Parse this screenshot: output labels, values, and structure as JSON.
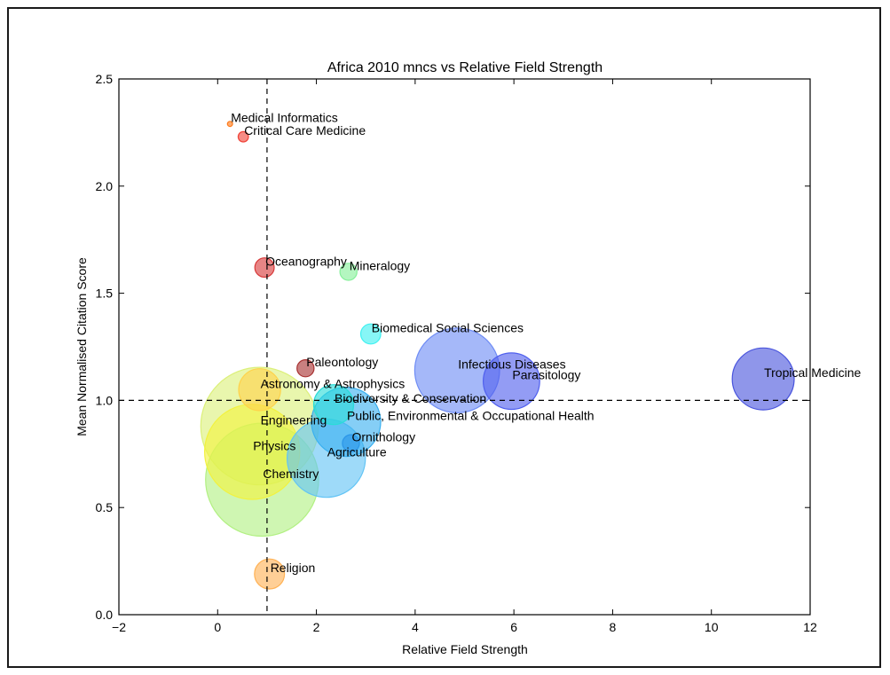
{
  "chart_data": {
    "type": "scatter",
    "variant": "bubble",
    "title": "Africa 2010 mncs vs Relative Field Strength",
    "xlabel": "Relative Field Strength",
    "ylabel": "Mean Normalised Citation Score",
    "xlim": [
      -2,
      12
    ],
    "ylim": [
      0,
      2.5
    ],
    "xticks": [
      -2,
      0,
      2,
      4,
      6,
      8,
      10,
      12
    ],
    "yticks": [
      0.0,
      0.5,
      1.0,
      1.5,
      2.0,
      2.5
    ],
    "xtick_labels": [
      "−2",
      "0",
      "2",
      "4",
      "6",
      "8",
      "10",
      "12"
    ],
    "ytick_labels": [
      "0.0",
      "0.5",
      "1.0",
      "1.5",
      "2.0",
      "2.5"
    ],
    "reference_lines": {
      "x": 1.0,
      "y": 1.0,
      "style": "dashed"
    },
    "grid": false,
    "points": [
      {
        "label": "Medical Informatics",
        "x": 0.25,
        "y": 2.29,
        "size": 0.05,
        "color": "#ff7a1a"
      },
      {
        "label": "Critical Care Medicine",
        "x": 0.52,
        "y": 2.23,
        "size": 0.2,
        "color": "#f0453a"
      },
      {
        "label": "Oceanography",
        "x": 0.95,
        "y": 1.62,
        "size": 0.7,
        "color": "#d83a3a"
      },
      {
        "label": "Mineralogy",
        "x": 2.65,
        "y": 1.6,
        "size": 0.55,
        "color": "#86f09a"
      },
      {
        "label": "Biomedical Social Sciences",
        "x": 3.1,
        "y": 1.31,
        "size": 0.75,
        "color": "#3ef0f0"
      },
      {
        "label": "Paleontology",
        "x": 1.78,
        "y": 1.15,
        "size": 0.55,
        "color": "#a83232"
      },
      {
        "label": "Infectious Diseases",
        "x": 4.85,
        "y": 1.14,
        "size": 13.5,
        "color": "#6e8cf5"
      },
      {
        "label": "Parasitology",
        "x": 5.95,
        "y": 1.09,
        "size": 6.0,
        "color": "#5060ee"
      },
      {
        "label": "Tropical Medicine",
        "x": 11.05,
        "y": 1.1,
        "size": 7.2,
        "color": "#4a55dd"
      },
      {
        "label": "Astronomy & Astrophysics",
        "x": 0.85,
        "y": 1.05,
        "size": 3.3,
        "color": "#ffd24a"
      },
      {
        "label": "Biodiversity & Conservation",
        "x": 2.35,
        "y": 0.98,
        "size": 3.0,
        "color": "#2adcd8"
      },
      {
        "label": "Public, Environmental & Occupational Health",
        "x": 2.6,
        "y": 0.9,
        "size": 9.0,
        "color": "#3ab0f0"
      },
      {
        "label": "Engineering",
        "x": 0.85,
        "y": 0.88,
        "size": 26.0,
        "color": "#dcf07a"
      },
      {
        "label": "Ornithology",
        "x": 2.7,
        "y": 0.8,
        "size": 0.55,
        "color": "#2b96e8"
      },
      {
        "label": "Agriculture",
        "x": 2.2,
        "y": 0.73,
        "size": 11.5,
        "color": "#63c4f5"
      },
      {
        "label": "Physics",
        "x": 0.7,
        "y": 0.76,
        "size": 17.0,
        "color": "#f2f23e"
      },
      {
        "label": "Chemistry",
        "x": 0.9,
        "y": 0.63,
        "size": 24.0,
        "color": "#b2f083"
      },
      {
        "label": "Religion",
        "x": 1.05,
        "y": 0.19,
        "size": 1.7,
        "color": "#ffb255"
      }
    ]
  }
}
